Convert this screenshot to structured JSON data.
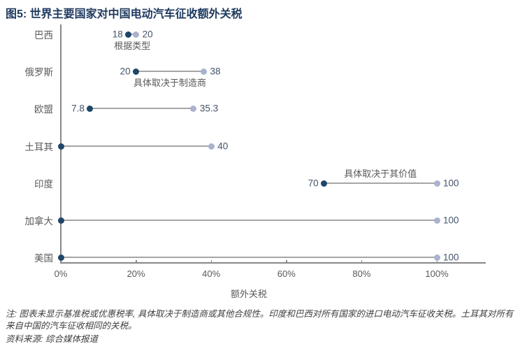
{
  "title": "图5: 世界主要国家对中国电动汽车征收额外关税",
  "note": "注: 图表未显示基准税或优惠税率, 具体取决于制造商或其他合规性。印度和巴西对所有国家的进口电动汽车征收关税。土耳其对所有来自中国的汽车征收相同的关税。",
  "source": "资料来源: 综合媒体报道",
  "colors": {
    "title": "#1e3a5f",
    "min_dot": "#1f4568",
    "max_dot": "#aab3cd",
    "segment_line": "#a6a6a6",
    "axis": "#878787",
    "value_label": "#44546a",
    "gray_text": "#595959"
  },
  "chart_data": {
    "type": "dumbbell",
    "title": "图5: 世界主要国家对中国电动汽车征收额外关税",
    "xlabel": "额外关税",
    "xlim": [
      0,
      113
    ],
    "grid": false,
    "x_ticks": [
      {
        "value": 0,
        "label": "0%"
      },
      {
        "value": 20,
        "label": "20%"
      },
      {
        "value": 40,
        "label": "40%"
      },
      {
        "value": 60,
        "label": "60%"
      },
      {
        "value": 80,
        "label": "80%"
      },
      {
        "value": 100,
        "label": "100%"
      }
    ],
    "rows": [
      {
        "country": "巴西",
        "min": 18,
        "max": 20,
        "min_label": "18",
        "max_label": "20",
        "annotation": "根据类型",
        "annotation_pos": "below"
      },
      {
        "country": "俄罗斯",
        "min": 20,
        "max": 38,
        "min_label": "20",
        "max_label": "38",
        "annotation": "具体取决于制造商",
        "annotation_pos": "below"
      },
      {
        "country": "欧盟",
        "min": 7.8,
        "max": 35.3,
        "min_label": "7.8",
        "max_label": "35.3",
        "annotation": "",
        "annotation_pos": ""
      },
      {
        "country": "土耳其",
        "min": 0,
        "max": 40,
        "min_label": "",
        "max_label": "40",
        "annotation": "",
        "annotation_pos": ""
      },
      {
        "country": "印度",
        "min": 70,
        "max": 100,
        "min_label": "70",
        "max_label": "100",
        "annotation": "具体取决于其价值",
        "annotation_pos": "above"
      },
      {
        "country": "加拿大",
        "min": 0,
        "max": 100,
        "min_label": "",
        "max_label": "100",
        "annotation": "",
        "annotation_pos": ""
      },
      {
        "country": "美国",
        "min": 0,
        "max": 100,
        "min_label": "",
        "max_label": "100",
        "annotation": "",
        "annotation_pos": ""
      }
    ]
  }
}
